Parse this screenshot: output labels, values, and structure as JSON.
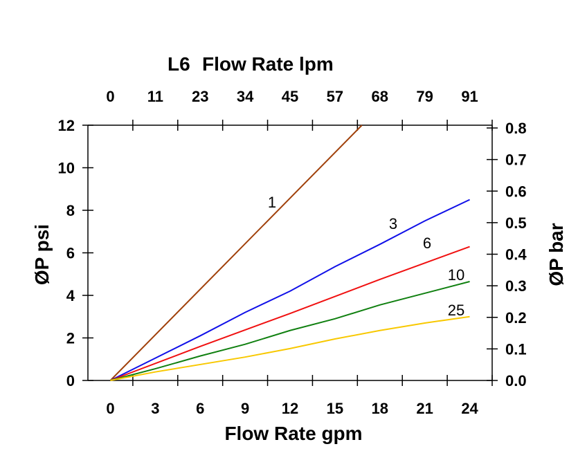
{
  "chart_data": {
    "type": "line",
    "top_title": "L6",
    "top_xlabel": "Flow Rate lpm",
    "xlabel": "Flow Rate gpm",
    "ylabel": "ØP psi",
    "ylabel_right": "ØP bar",
    "x_ticks": [
      0,
      3,
      6,
      9,
      12,
      15,
      18,
      21,
      24
    ],
    "x_top_ticks": [
      "0",
      "11",
      "23",
      "34",
      "45",
      "57",
      "68",
      "79",
      "91"
    ],
    "y_ticks": [
      0,
      2,
      4,
      6,
      8,
      10,
      12
    ],
    "y_right_ticks": [
      "0.0",
      "0.1",
      "0.2",
      "0.3",
      "0.4",
      "0.5",
      "0.6",
      "0.7",
      "0.8"
    ],
    "xlim": [
      -1.5,
      25.5
    ],
    "ylim": [
      0,
      12
    ],
    "y_right_lim": [
      0,
      0.8
    ],
    "grid": false,
    "series": [
      {
        "name": "1",
        "color": "#A0400A",
        "points": [
          [
            0,
            0
          ],
          [
            16.8,
            12
          ]
        ]
      },
      {
        "name": "3",
        "color": "#1010E8",
        "points": [
          [
            0,
            0
          ],
          [
            3,
            1.05
          ],
          [
            6,
            2.1
          ],
          [
            9,
            3.2
          ],
          [
            12,
            4.2
          ],
          [
            15,
            5.35
          ],
          [
            18,
            6.4
          ],
          [
            21,
            7.5
          ],
          [
            24,
            8.5
          ]
        ]
      },
      {
        "name": "6",
        "color": "#F01010",
        "points": [
          [
            0,
            0
          ],
          [
            6,
            1.6
          ],
          [
            12,
            3.15
          ],
          [
            18,
            4.75
          ],
          [
            24,
            6.29
          ]
        ]
      },
      {
        "name": "10",
        "color": "#108010",
        "points": [
          [
            0,
            0
          ],
          [
            3,
            0.55
          ],
          [
            6,
            1.15
          ],
          [
            9,
            1.7
          ],
          [
            12,
            2.35
          ],
          [
            15,
            2.9
          ],
          [
            18,
            3.55
          ],
          [
            21,
            4.1
          ],
          [
            24,
            4.65
          ]
        ]
      },
      {
        "name": "25",
        "color": "#F8C800",
        "points": [
          [
            0,
            0
          ],
          [
            3,
            0.4
          ],
          [
            6,
            0.75
          ],
          [
            9,
            1.1
          ],
          [
            12,
            1.5
          ],
          [
            15,
            1.95
          ],
          [
            18,
            2.35
          ],
          [
            21,
            2.7
          ],
          [
            24,
            3.0
          ]
        ]
      }
    ]
  }
}
